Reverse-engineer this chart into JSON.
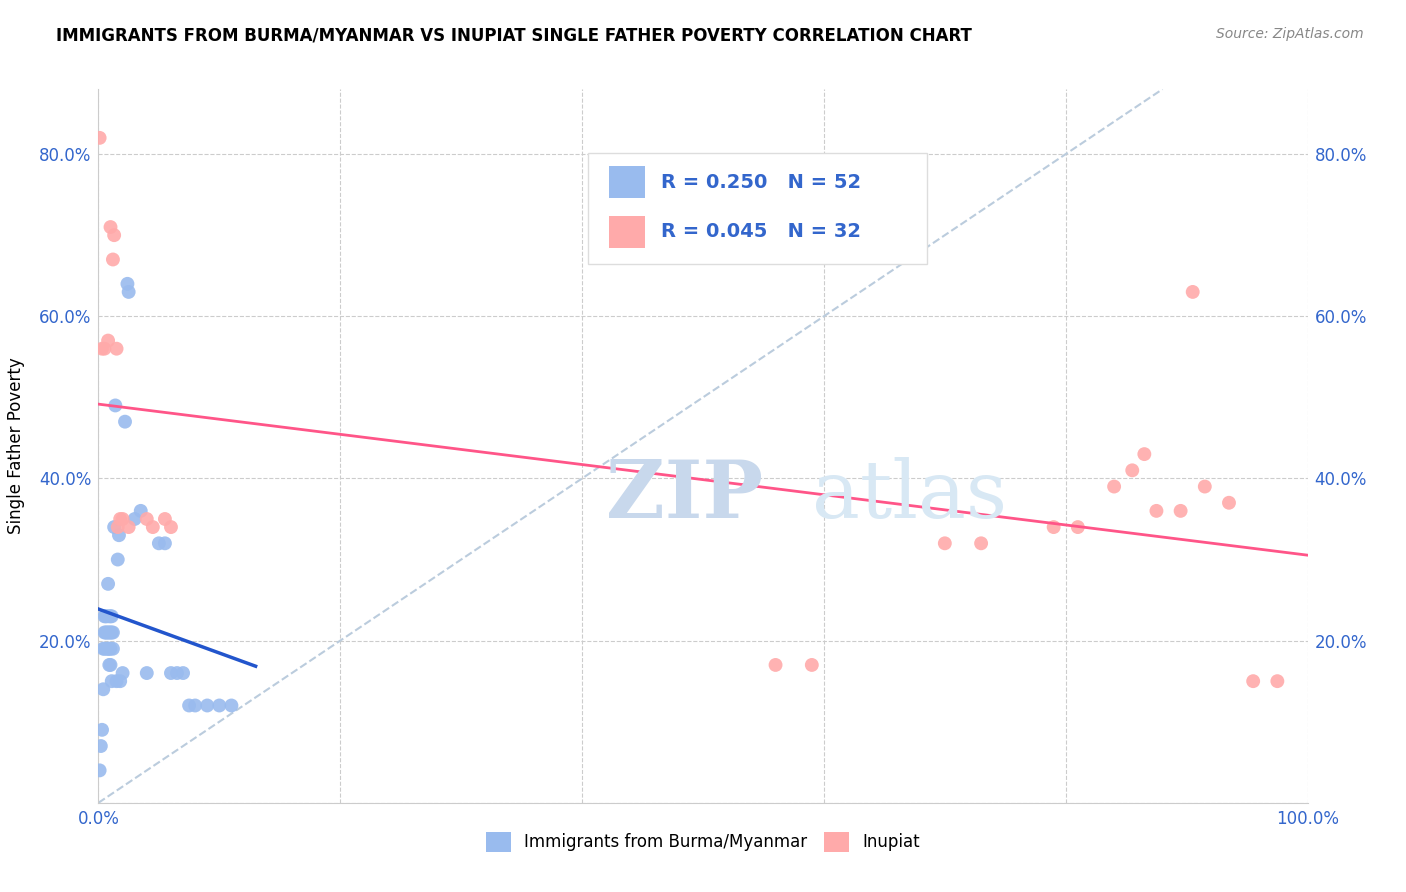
{
  "title": "IMMIGRANTS FROM BURMA/MYANMAR VS INUPIAT SINGLE FATHER POVERTY CORRELATION CHART",
  "source": "Source: ZipAtlas.com",
  "ylabel": "Single Father Poverty",
  "x_ticks": [
    0.0,
    0.2,
    0.4,
    0.6,
    0.8,
    1.0
  ],
  "x_tick_labels": [
    "0.0%",
    "",
    "",
    "",
    "",
    "100.0%"
  ],
  "y_ticks": [
    0.0,
    0.2,
    0.4,
    0.6,
    0.8
  ],
  "y_tick_labels": [
    "",
    "20.0%",
    "40.0%",
    "60.0%",
    "80.0%"
  ],
  "blue_color": "#99BBEE",
  "pink_color": "#FFAAAA",
  "trendline_blue_color": "#2255CC",
  "trendline_pink_color": "#FF5588",
  "diagonal_color": "#BBCCDD",
  "legend_R1": "R = 0.250",
  "legend_N1": "N = 52",
  "legend_R2": "R = 0.045",
  "legend_N2": "N = 32",
  "watermark_zip": "ZIP",
  "watermark_atlas": "atlas",
  "blue_label": "Immigrants from Burma/Myanmar",
  "pink_label": "Inupiat",
  "blue_points_x": [
    0.001,
    0.002,
    0.003,
    0.004,
    0.004,
    0.005,
    0.005,
    0.005,
    0.006,
    0.006,
    0.007,
    0.007,
    0.007,
    0.008,
    0.008,
    0.008,
    0.009,
    0.009,
    0.009,
    0.009,
    0.01,
    0.01,
    0.01,
    0.01,
    0.011,
    0.011,
    0.011,
    0.012,
    0.012,
    0.013,
    0.014,
    0.015,
    0.016,
    0.017,
    0.018,
    0.02,
    0.022,
    0.024,
    0.025,
    0.03,
    0.035,
    0.04,
    0.05,
    0.055,
    0.06,
    0.065,
    0.07,
    0.075,
    0.08,
    0.09,
    0.1,
    0.11
  ],
  "blue_points_y": [
    0.04,
    0.07,
    0.09,
    0.14,
    0.19,
    0.19,
    0.21,
    0.23,
    0.21,
    0.23,
    0.19,
    0.21,
    0.23,
    0.19,
    0.21,
    0.27,
    0.17,
    0.19,
    0.21,
    0.23,
    0.17,
    0.19,
    0.21,
    0.23,
    0.15,
    0.21,
    0.23,
    0.19,
    0.21,
    0.34,
    0.49,
    0.15,
    0.3,
    0.33,
    0.15,
    0.16,
    0.47,
    0.64,
    0.63,
    0.35,
    0.36,
    0.16,
    0.32,
    0.32,
    0.16,
    0.16,
    0.16,
    0.12,
    0.12,
    0.12,
    0.12,
    0.12
  ],
  "pink_points_x": [
    0.001,
    0.003,
    0.005,
    0.008,
    0.01,
    0.012,
    0.013,
    0.015,
    0.016,
    0.018,
    0.02,
    0.025,
    0.04,
    0.045,
    0.055,
    0.06,
    0.56,
    0.59,
    0.7,
    0.73,
    0.79,
    0.81,
    0.84,
    0.855,
    0.865,
    0.875,
    0.895,
    0.905,
    0.915,
    0.935,
    0.955,
    0.975
  ],
  "pink_points_y": [
    0.82,
    0.56,
    0.56,
    0.57,
    0.71,
    0.67,
    0.7,
    0.56,
    0.34,
    0.35,
    0.35,
    0.34,
    0.35,
    0.34,
    0.35,
    0.34,
    0.17,
    0.17,
    0.32,
    0.32,
    0.34,
    0.34,
    0.39,
    0.41,
    0.43,
    0.36,
    0.36,
    0.63,
    0.39,
    0.37,
    0.15,
    0.15
  ],
  "xlim": [
    0.0,
    1.0
  ],
  "ylim": [
    0.0,
    0.88
  ]
}
